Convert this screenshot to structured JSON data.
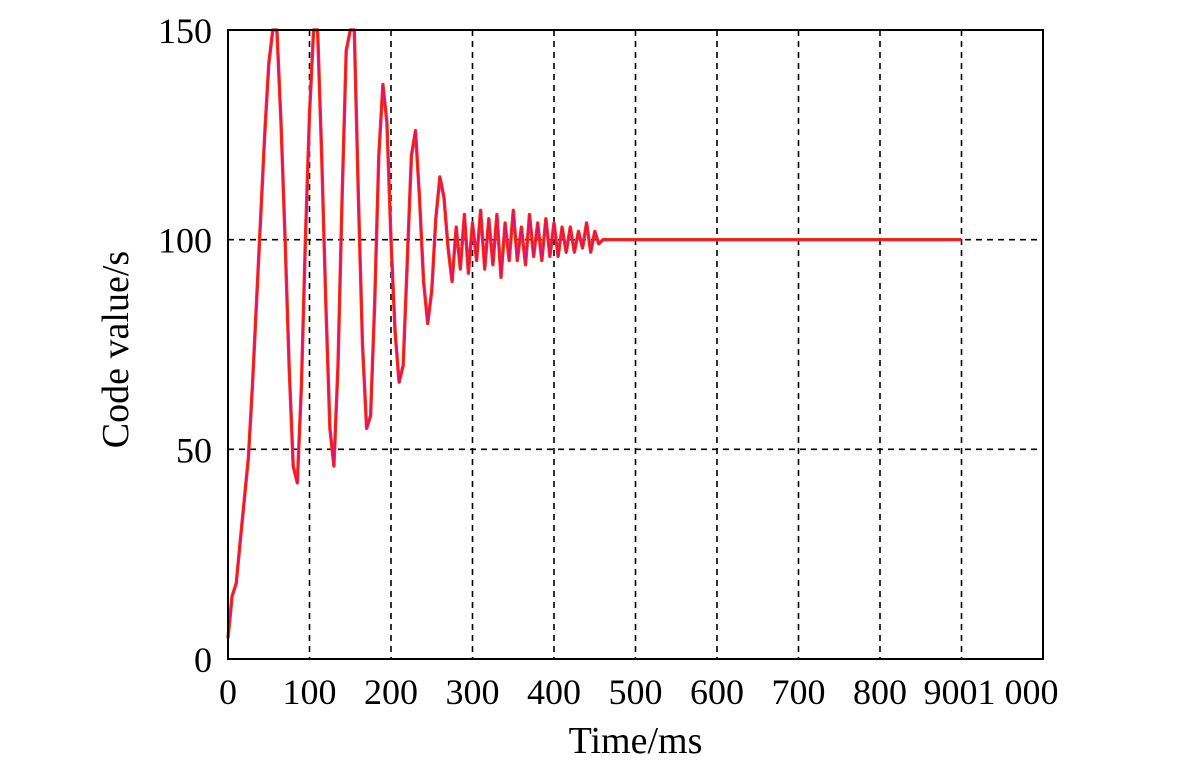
{
  "chart_data": {
    "type": "line",
    "xlabel": "Time/ms",
    "ylabel": "Code value/s",
    "xlim": [
      0,
      1000
    ],
    "ylim": [
      0,
      150
    ],
    "grid": true,
    "x_tick_labels": [
      "0",
      "100",
      "200",
      "300",
      "400",
      "500",
      "600",
      "700",
      "800",
      "9001 000"
    ],
    "x_tick_values": [
      0,
      100,
      200,
      300,
      400,
      500,
      600,
      700,
      800,
      900
    ],
    "y_ticks": [
      0,
      50,
      100,
      150
    ],
    "colors": {
      "series_outer": "#ff3300",
      "series_inner": "#e0106e",
      "grid": "#000000",
      "axes": "#000000"
    },
    "series": [
      {
        "x": [
          0,
          5,
          10,
          15,
          20,
          25,
          30,
          35,
          40,
          45,
          50,
          55,
          60,
          65,
          70,
          75,
          80,
          85,
          90,
          95,
          100,
          105,
          110,
          115,
          120,
          125,
          130,
          135,
          140,
          145,
          150,
          155,
          160,
          165,
          170,
          175,
          180,
          185,
          190,
          195,
          200,
          205,
          210,
          215,
          220,
          225,
          230,
          235,
          240,
          245,
          250,
          255,
          260,
          265,
          270,
          275,
          280,
          285,
          290,
          295,
          300,
          305,
          310,
          315,
          320,
          325,
          330,
          335,
          340,
          345,
          350,
          355,
          360,
          365,
          370,
          375,
          380,
          385,
          390,
          395,
          400,
          405,
          410,
          415,
          420,
          425,
          430,
          435,
          440,
          445,
          450,
          455,
          460,
          465,
          470,
          475,
          480,
          500,
          600,
          700,
          800,
          900
        ],
        "y": [
          5,
          15,
          18,
          28,
          38,
          48,
          65,
          85,
          105,
          125,
          142,
          150,
          150,
          128,
          100,
          70,
          46,
          42,
          65,
          100,
          130,
          150,
          150,
          120,
          85,
          55,
          46,
          70,
          110,
          145,
          150,
          150,
          110,
          75,
          55,
          58,
          85,
          120,
          137,
          128,
          100,
          78,
          66,
          70,
          95,
          120,
          126,
          110,
          90,
          80,
          88,
          105,
          115,
          110,
          98,
          90,
          103,
          93,
          106,
          92,
          104,
          95,
          107,
          93,
          105,
          94,
          106,
          91,
          104,
          95,
          107,
          95,
          103,
          94,
          106,
          96,
          104,
          95,
          105,
          96,
          104,
          96,
          103,
          97,
          103,
          97,
          102,
          98,
          104,
          97,
          102,
          99,
          100,
          100,
          100,
          100,
          100,
          100,
          100,
          100,
          100,
          100
        ]
      }
    ]
  }
}
